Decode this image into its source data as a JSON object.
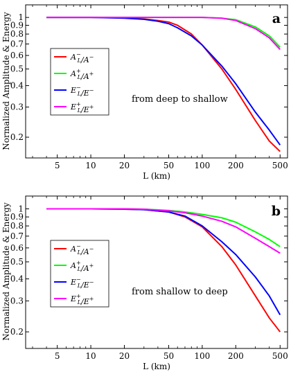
{
  "figure": {
    "ylabel": "Normalized Amplitude & Energy",
    "xlabel": "L (km)"
  },
  "chart_data": [
    {
      "type": "line",
      "panel": "a",
      "annotation": "from deep to shallow",
      "xlabel": "L (km)",
      "ylabel": "Normalized Amplitude & Energy",
      "xscale": "log",
      "yscale": "log",
      "xlim": [
        3,
        520
      ],
      "ylim": [
        0.16,
        1.12
      ],
      "xticks": [
        5,
        10,
        20,
        50,
        100,
        200,
        500
      ],
      "yticks": [
        0.2,
        0.3,
        0.4,
        0.5,
        0.6,
        0.7,
        0.8,
        0.9,
        1
      ],
      "grid": false,
      "legend_position": "left-middle",
      "x": [
        4,
        10,
        20,
        30,
        40,
        50,
        60,
        80,
        100,
        150,
        200,
        300,
        400,
        500
      ],
      "series": [
        {
          "name": "A_L^-/A^-",
          "color": "#ff0000",
          "values": [
            1.0,
            1.0,
            0.995,
            0.98,
            0.96,
            0.94,
            0.9,
            0.8,
            0.69,
            0.5,
            0.38,
            0.25,
            0.19,
            0.165
          ]
        },
        {
          "name": "A_L^+/A^+",
          "color": "#00ff00",
          "values": [
            1.0,
            1.0,
            1.0,
            1.0,
            1.0,
            1.0,
            1.0,
            1.0,
            1.0,
            0.99,
            0.97,
            0.88,
            0.78,
            0.67
          ]
        },
        {
          "name": "E_L^-/E^-",
          "color": "#0000ff",
          "values": [
            1.0,
            1.0,
            0.99,
            0.975,
            0.95,
            0.92,
            0.87,
            0.78,
            0.69,
            0.52,
            0.41,
            0.28,
            0.22,
            0.18
          ]
        },
        {
          "name": "E_L^+/E^+",
          "color": "#ff00ff",
          "values": [
            1.0,
            1.0,
            1.0,
            1.0,
            1.0,
            1.0,
            1.0,
            1.0,
            1.0,
            0.99,
            0.96,
            0.86,
            0.76,
            0.65
          ]
        }
      ]
    },
    {
      "type": "line",
      "panel": "b",
      "annotation": "from shallow to deep",
      "xlabel": "L (km)",
      "ylabel": "Normalized Amplitude & Energy",
      "xscale": "log",
      "yscale": "log",
      "xlim": [
        3,
        520
      ],
      "ylim": [
        0.17,
        1.12
      ],
      "xticks": [
        5,
        10,
        20,
        50,
        100,
        200,
        500
      ],
      "yticks": [
        0.2,
        0.3,
        0.4,
        0.5,
        0.6,
        0.7,
        0.8,
        0.9,
        1
      ],
      "grid": false,
      "legend_position": "left-middle",
      "x": [
        4,
        10,
        20,
        30,
        50,
        70,
        100,
        150,
        200,
        300,
        400,
        500
      ],
      "series": [
        {
          "name": "A_L^-/A^-",
          "color": "#ff0000",
          "values": [
            1.0,
            1.0,
            0.995,
            0.99,
            0.96,
            0.9,
            0.79,
            0.61,
            0.48,
            0.32,
            0.24,
            0.2
          ]
        },
        {
          "name": "A_L^+/A^+",
          "color": "#00ff00",
          "values": [
            1.0,
            1.0,
            1.0,
            0.995,
            0.98,
            0.96,
            0.93,
            0.89,
            0.84,
            0.74,
            0.67,
            0.61
          ]
        },
        {
          "name": "E_L^-/E^-",
          "color": "#0000ff",
          "values": [
            1.0,
            1.0,
            0.995,
            0.99,
            0.96,
            0.91,
            0.8,
            0.65,
            0.55,
            0.41,
            0.32,
            0.25
          ]
        },
        {
          "name": "E_L^+/E^+",
          "color": "#ff00ff",
          "values": [
            1.0,
            1.0,
            1.0,
            0.995,
            0.975,
            0.95,
            0.91,
            0.85,
            0.79,
            0.68,
            0.61,
            0.56
          ]
        }
      ]
    }
  ]
}
